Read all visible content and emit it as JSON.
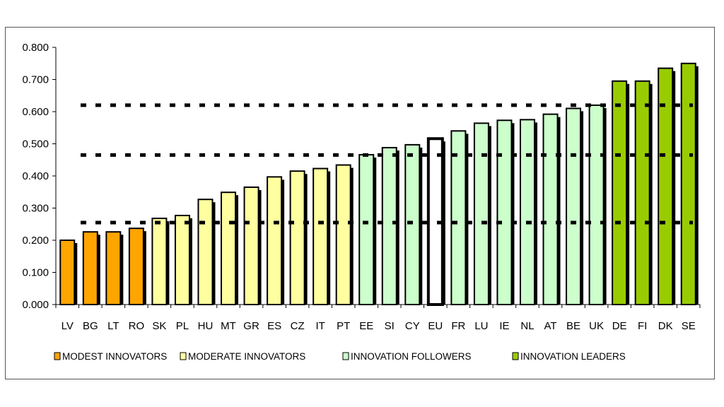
{
  "chart_data": {
    "type": "bar",
    "title": "",
    "xlabel": "",
    "ylabel": "",
    "ylim": [
      0,
      0.8
    ],
    "yticks": [
      "0.000",
      "0.100",
      "0.200",
      "0.300",
      "0.400",
      "0.500",
      "0.600",
      "0.700",
      "0.800"
    ],
    "categories": [
      "LV",
      "BG",
      "LT",
      "RO",
      "SK",
      "PL",
      "HU",
      "MT",
      "GR",
      "ES",
      "CZ",
      "IT",
      "PT",
      "EE",
      "SI",
      "CY",
      "EU",
      "FR",
      "LU",
      "IE",
      "NL",
      "AT",
      "BE",
      "UK",
      "DE",
      "FI",
      "DK",
      "SE"
    ],
    "values": [
      0.2,
      0.226,
      0.226,
      0.237,
      0.268,
      0.277,
      0.327,
      0.349,
      0.365,
      0.397,
      0.415,
      0.423,
      0.434,
      0.466,
      0.488,
      0.497,
      0.516,
      0.54,
      0.564,
      0.573,
      0.575,
      0.592,
      0.61,
      0.62,
      0.695,
      0.695,
      0.735,
      0.75
    ],
    "groups": [
      0,
      0,
      0,
      0,
      1,
      1,
      1,
      1,
      1,
      1,
      1,
      1,
      1,
      2,
      2,
      2,
      3,
      2,
      2,
      2,
      2,
      2,
      2,
      2,
      4,
      4,
      4,
      4
    ],
    "thresholds": [
      0.255,
      0.465,
      0.62
    ],
    "legend": [
      {
        "label": "MODEST INNOVATORS",
        "color": "#FFA500"
      },
      {
        "label": "MODERATE INNOVATORS",
        "color": "#FFFFA0"
      },
      {
        "label": "INNOVATION FOLLOWERS",
        "color": "#CCFFCC"
      },
      {
        "label": "INNOVATION LEADERS",
        "color": "#99CC00"
      }
    ],
    "legend_position": "bottom",
    "group_colors": [
      "#FFA500",
      "#FFFFA0",
      "#CCFFCC",
      "#FFFFFF",
      "#99CC00"
    ]
  }
}
